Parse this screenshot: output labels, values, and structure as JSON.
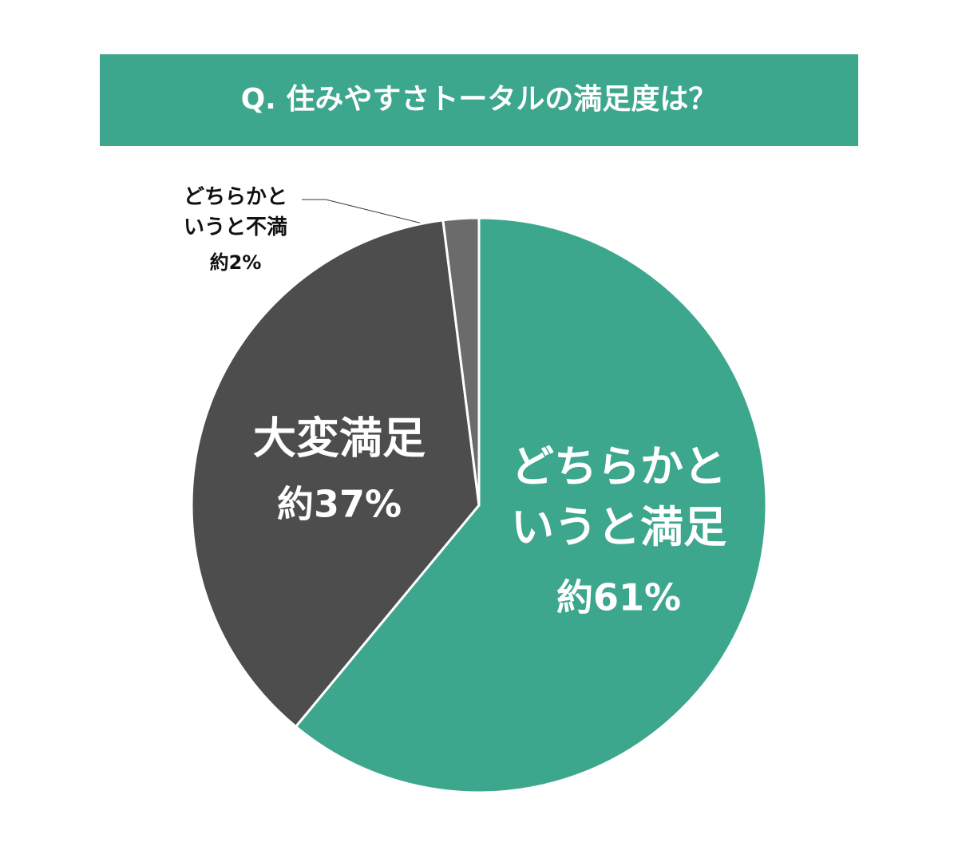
{
  "chart_data": {
    "type": "pie",
    "title": "Q. 住みやすさトータルの満足度は？",
    "categories": [
      "どちらかというと満足",
      "大変満足",
      "どちらかというと不満"
    ],
    "values": [
      61,
      37,
      2
    ],
    "value_labels": [
      "約61%",
      "約37%",
      "約2%"
    ],
    "colors": [
      "#3da78e",
      "#4d4d4d",
      "#6b6b6b"
    ]
  }
}
